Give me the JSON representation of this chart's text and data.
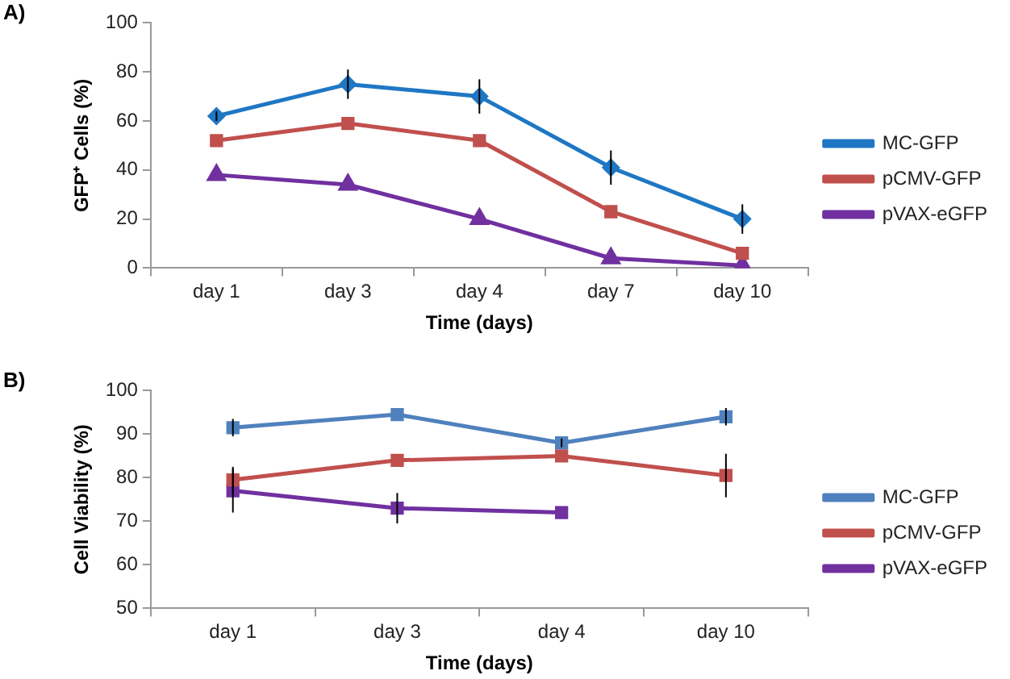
{
  "chart_data": [
    {
      "type": "line",
      "annotations": [
        "A)"
      ],
      "xlabel": "Time (days)",
      "ylabel": "GFP⁺ Cells (%)",
      "categories": [
        "day 1",
        "day 3",
        "day 4",
        "day 7",
        "day 10"
      ],
      "ylim": [
        0,
        100
      ],
      "yticks": [
        0,
        20,
        40,
        60,
        80,
        100
      ],
      "legend": "right",
      "series": [
        {
          "name": "MC-GFP",
          "color": "#1f77c4",
          "marker": "diamond",
          "values": [
            62,
            75,
            70,
            41,
            20
          ],
          "errors": [
            2,
            6,
            7,
            7,
            6
          ]
        },
        {
          "name": "pCMV-GFP",
          "color": "#c0504d",
          "marker": "square",
          "values": [
            52,
            59,
            52,
            23,
            6
          ],
          "errors": [
            null,
            null,
            null,
            null,
            null
          ]
        },
        {
          "name": "pVAX-eGFP",
          "color": "#7030a0",
          "marker": "triangle",
          "values": [
            38,
            34,
            20,
            4,
            1
          ],
          "errors": [
            null,
            null,
            null,
            null,
            null
          ]
        }
      ]
    },
    {
      "type": "line",
      "annotations": [
        "B)"
      ],
      "xlabel": "Time (days)",
      "ylabel": "Cell Viability (%)",
      "categories": [
        "day 1",
        "day 3",
        "day 4",
        "day 10"
      ],
      "ylim": [
        50,
        100
      ],
      "yticks": [
        50,
        60,
        70,
        80,
        90,
        100
      ],
      "legend": "right",
      "series": [
        {
          "name": "MC-GFP",
          "color": "#4f81bd",
          "marker": "square",
          "values": [
            91.5,
            94.5,
            88,
            94
          ],
          "errors": [
            2,
            null,
            1,
            2
          ]
        },
        {
          "name": "pCMV-GFP",
          "color": "#c0504d",
          "marker": "square",
          "values": [
            79.5,
            84,
            85,
            80.5
          ],
          "errors": [
            3,
            null,
            null,
            5
          ]
        },
        {
          "name": "pVAX-eGFP",
          "color": "#7030a0",
          "marker": "square",
          "values": [
            77,
            73,
            72,
            null
          ],
          "errors": [
            5,
            3.5,
            null,
            null
          ]
        }
      ]
    }
  ]
}
